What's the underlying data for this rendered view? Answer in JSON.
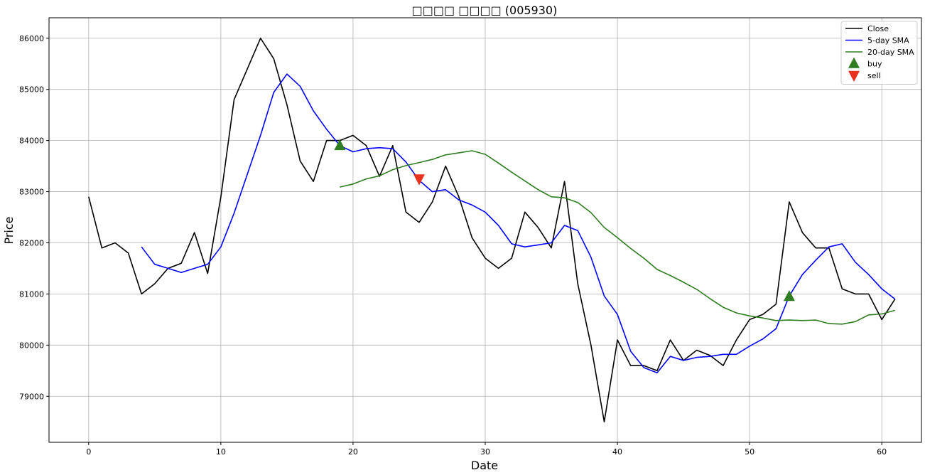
{
  "chart_data": {
    "type": "line",
    "title": "□□□□ □□□□ (005930)",
    "xlabel": "Date",
    "ylabel": "Price",
    "xlim": [
      -3,
      63
    ],
    "ylim": [
      78100,
      86400
    ],
    "xticks": [
      0,
      10,
      20,
      30,
      40,
      50,
      60
    ],
    "xtick_labels": [
      "0",
      "10",
      "20",
      "30",
      "40",
      "50",
      "60"
    ],
    "yticks": [
      79000,
      80000,
      81000,
      82000,
      83000,
      84000,
      85000,
      86000
    ],
    "ytick_labels": [
      "79000",
      "80000",
      "81000",
      "82000",
      "83000",
      "84000",
      "85000",
      "86000"
    ],
    "grid": true,
    "legend_position": "top-right",
    "series": [
      {
        "name": "Close",
        "color": "#000000",
        "x": [
          0,
          1,
          2,
          3,
          4,
          5,
          6,
          7,
          8,
          9,
          10,
          11,
          12,
          13,
          14,
          15,
          16,
          17,
          18,
          19,
          20,
          21,
          22,
          23,
          24,
          25,
          26,
          27,
          28,
          29,
          30,
          31,
          32,
          33,
          34,
          35,
          36,
          37,
          38,
          39,
          40,
          41,
          42,
          43,
          44,
          45,
          46,
          47,
          48,
          49,
          50,
          51,
          52,
          53,
          54,
          55,
          56,
          57,
          58,
          59,
          60,
          61
        ],
        "y": [
          82900,
          81900,
          82000,
          81800,
          81000,
          81200,
          81500,
          81600,
          82200,
          81400,
          82900,
          84800,
          85400,
          86000,
          85600,
          84700,
          83600,
          83200,
          84000,
          84000,
          84100,
          83900,
          83300,
          83900,
          82600,
          82400,
          82800,
          83500,
          82900,
          82100,
          81700,
          81500,
          81700,
          82600,
          82300,
          81900,
          83200,
          81200,
          80000,
          78500,
          80100,
          79600,
          79600,
          79500,
          80100,
          79700,
          79900,
          79800,
          79600,
          80100,
          80500,
          80600,
          80800,
          82800,
          82200,
          81900,
          81900,
          81100,
          81000,
          81000,
          80500,
          80900
        ]
      },
      {
        "name": "5-day SMA",
        "color": "#0000ff",
        "x": [
          4,
          5,
          6,
          7,
          8,
          9,
          10,
          11,
          12,
          13,
          14,
          15,
          16,
          17,
          18,
          19,
          20,
          21,
          22,
          23,
          24,
          25,
          26,
          27,
          28,
          29,
          30,
          31,
          32,
          33,
          34,
          35,
          36,
          37,
          38,
          39,
          40,
          41,
          42,
          43,
          44,
          45,
          46,
          47,
          48,
          49,
          50,
          51,
          52,
          53,
          54,
          55,
          56,
          57,
          58,
          59,
          60,
          61
        ],
        "y": [
          81920,
          81580,
          81500,
          81420,
          81500,
          81580,
          81920,
          82580,
          83340,
          84100,
          84940,
          85300,
          85060,
          84580,
          84220,
          83900,
          83780,
          83840,
          83860,
          83840,
          83580,
          83220,
          83000,
          83040,
          82840,
          82740,
          82600,
          82340,
          81980,
          81920,
          81960,
          82000,
          82340,
          82240,
          81720,
          80960,
          80600,
          79880,
          79560,
          79460,
          79780,
          79700,
          79760,
          79780,
          79820,
          79820,
          79980,
          80120,
          80320,
          80960,
          81380,
          81660,
          81920,
          81980,
          81620,
          81380,
          81100,
          80900
        ]
      },
      {
        "name": "20-day SMA",
        "color": "#2e7d1e",
        "x": [
          19,
          20,
          21,
          22,
          23,
          24,
          25,
          26,
          27,
          28,
          29,
          30,
          31,
          32,
          33,
          34,
          35,
          36,
          37,
          38,
          39,
          40,
          41,
          42,
          43,
          44,
          45,
          46,
          47,
          48,
          49,
          50,
          51,
          52,
          53,
          54,
          55,
          56,
          57,
          58,
          59,
          60,
          61
        ],
        "y": [
          83090,
          83150,
          83250,
          83310,
          83430,
          83510,
          83570,
          83630,
          83720,
          83760,
          83800,
          83730,
          83560,
          83380,
          83210,
          83040,
          82900,
          82880,
          82790,
          82590,
          82300,
          82100,
          81890,
          81700,
          81480,
          81360,
          81230,
          81090,
          80910,
          80740,
          80630,
          80570,
          80530,
          80480,
          80490,
          80480,
          80490,
          80420,
          80410,
          80460,
          80590,
          80610,
          80680
        ]
      }
    ],
    "markers": [
      {
        "name": "buy",
        "symbol": "triangle-up",
        "color": "#2e7d1e",
        "points": [
          [
            19,
            83900
          ],
          [
            53,
            80950
          ]
        ]
      },
      {
        "name": "sell",
        "symbol": "triangle-down",
        "color": "#e8321e",
        "points": [
          [
            25,
            83250
          ]
        ]
      }
    ]
  }
}
